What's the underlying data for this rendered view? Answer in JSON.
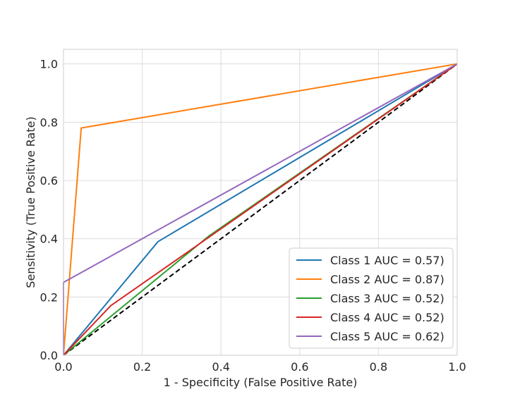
{
  "chart_data": {
    "type": "line",
    "title": "",
    "xlabel": "1 - Specificity (False Positive Rate)",
    "ylabel": "Sensitivity (True Positive Rate)",
    "xlim": [
      0,
      1
    ],
    "ylim": [
      0,
      1.05
    ],
    "x_ticks": [
      "0.0",
      "0.2",
      "0.4",
      "0.6",
      "0.8",
      "1.0"
    ],
    "y_ticks": [
      "0.0",
      "0.2",
      "0.4",
      "0.6",
      "0.8",
      "1.0"
    ],
    "grid": true,
    "legend_position": "lower-right",
    "series": [
      {
        "name": "Class 1 AUC = 0.57)",
        "color": "#1f77b4",
        "x": [
          0,
          0.24,
          1
        ],
        "y": [
          0,
          0.39,
          1
        ]
      },
      {
        "name": "Class 2 AUC = 0.87)",
        "color": "#ff7f0e",
        "x": [
          0,
          0.045,
          1
        ],
        "y": [
          0,
          0.78,
          1
        ]
      },
      {
        "name": "Class 3 AUC = 0.52)",
        "color": "#2ca02c",
        "x": [
          0,
          0.37,
          1
        ],
        "y": [
          0,
          0.41,
          1
        ]
      },
      {
        "name": "Class 4 AUC = 0.52)",
        "color": "#d62728",
        "x": [
          0,
          0.12,
          1
        ],
        "y": [
          0,
          0.17,
          1
        ]
      },
      {
        "name": "Class 5 AUC = 0.62)",
        "color": "#9467bd",
        "x": [
          0,
          0,
          1
        ],
        "y": [
          0,
          0.25,
          1
        ]
      }
    ],
    "reference_line": {
      "x": [
        0,
        1
      ],
      "y": [
        0,
        1
      ],
      "color": "#000000",
      "style": "dashed"
    }
  }
}
